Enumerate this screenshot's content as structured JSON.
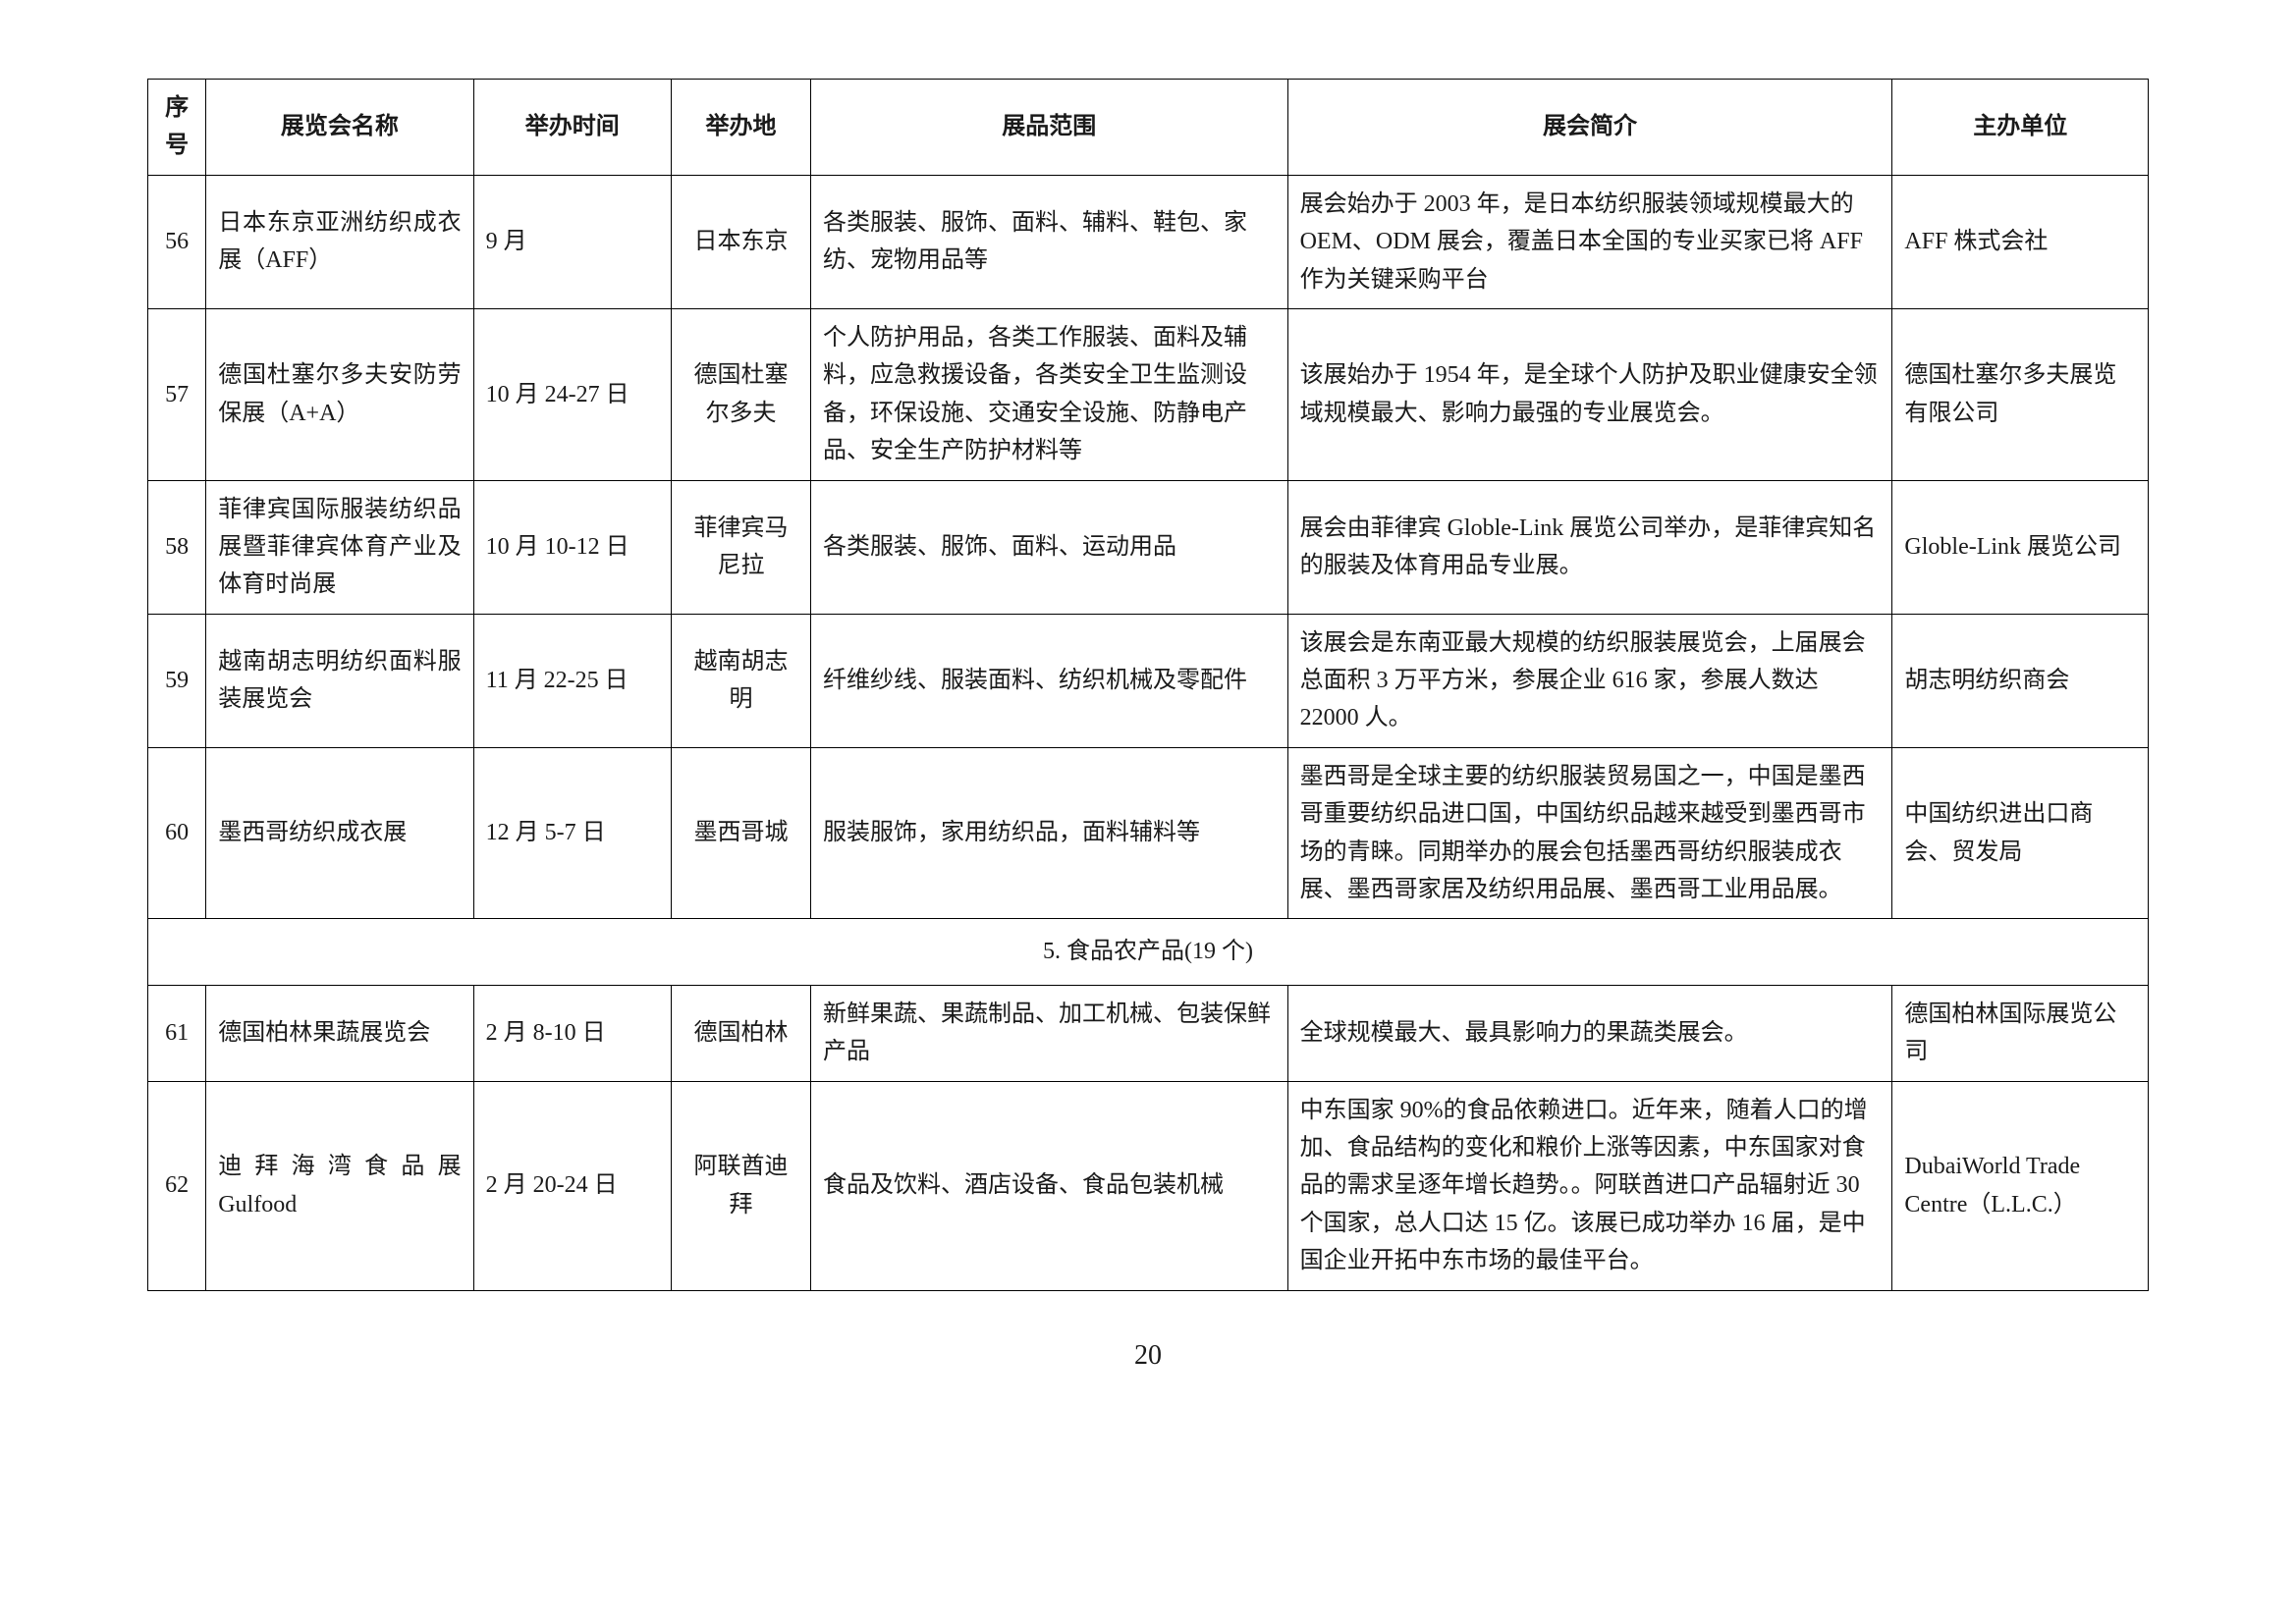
{
  "headers": {
    "seq": "序号",
    "name": "展览会名称",
    "time": "举办时间",
    "loc": "举办地",
    "scope": "展品范围",
    "intro": "展会简介",
    "org": "主办单位"
  },
  "rows": [
    {
      "seq": "56",
      "name": "日本东京亚洲纺织成衣展（AFF）",
      "time": "9 月",
      "loc": "日本东京",
      "scope": "各类服装、服饰、面料、辅料、鞋包、家纺、宠物用品等",
      "intro": "展会始办于 2003 年，是日本纺织服装领域规模最大的 OEM、ODM 展会，覆盖日本全国的专业买家已将 AFF 作为关键采购平台",
      "org": "AFF 株式会社"
    },
    {
      "seq": "57",
      "name": "德国杜塞尔多夫安防劳保展（A+A）",
      "time": "10 月 24-27 日",
      "loc": "德国杜塞尔多夫",
      "scope": "个人防护用品，各类工作服装、面料及辅料，应急救援设备，各类安全卫生监测设备，环保设施、交通安全设施、防静电产品、安全生产防护材料等",
      "intro": "该展始办于 1954 年，是全球个人防护及职业健康安全领域规模最大、影响力最强的专业展览会。",
      "org": "德国杜塞尔多夫展览有限公司"
    },
    {
      "seq": "58",
      "name": "菲律宾国际服装纺织品展暨菲律宾体育产业及体育时尚展",
      "time": "10 月 10-12 日",
      "loc": "菲律宾马尼拉",
      "scope": "各类服装、服饰、面料、运动用品",
      "intro": "展会由菲律宾 Globle-Link 展览公司举办，是菲律宾知名的服装及体育用品专业展。",
      "org": "Globle-Link 展览公司"
    },
    {
      "seq": "59",
      "name": "越南胡志明纺织面料服装展览会",
      "time": "11 月 22-25 日",
      "loc": "越南胡志明",
      "scope": "纤维纱线、服装面料、纺织机械及零配件",
      "intro": "该展会是东南亚最大规模的纺织服装展览会，上届展会总面积 3 万平方米，参展企业 616 家，参展人数达 22000 人。",
      "org": "胡志明纺织商会"
    },
    {
      "seq": "60",
      "name": "墨西哥纺织成衣展",
      "time": "12 月 5-7 日",
      "loc": "墨西哥城",
      "scope": "服装服饰，家用纺织品，面料辅料等",
      "intro": "墨西哥是全球主要的纺织服装贸易国之一，中国是墨西哥重要纺织品进口国，中国纺织品越来越受到墨西哥市场的青睐。同期举办的展会包括墨西哥纺织服装成衣展、墨西哥家居及纺织用品展、墨西哥工业用品展。",
      "org": "中国纺织进出口商会、贸发局"
    }
  ],
  "section": "5. 食品农产品(19 个)",
  "rows2": [
    {
      "seq": "61",
      "name": "德国柏林果蔬展览会",
      "time": "2 月 8-10 日",
      "loc": "德国柏林",
      "scope": "新鲜果蔬、果蔬制品、加工机械、包装保鲜产品",
      "intro": "全球规模最大、最具影响力的果蔬类展会。",
      "org": "德国柏林国际展览公司"
    },
    {
      "seq": "62",
      "name": "迪 拜 海 湾 食 品 展Gulfood",
      "time": "2 月 20-24 日",
      "loc": "阿联酋迪拜",
      "scope": "食品及饮料、酒店设备、食品包装机械",
      "intro": "中东国家 90%的食品依赖进口。近年来，随着人口的增加、食品结构的变化和粮价上涨等因素，中东国家对食品的需求呈逐年增长趋势。。阿联酋进口产品辐射近 30 个国家，总人口达 15 亿。该展已成功举办 16 届，是中国企业开拓中东市场的最佳平台。",
      "org": "DubaiWorld Trade Centre（L.L.C.）"
    }
  ],
  "pageNumber": "20"
}
